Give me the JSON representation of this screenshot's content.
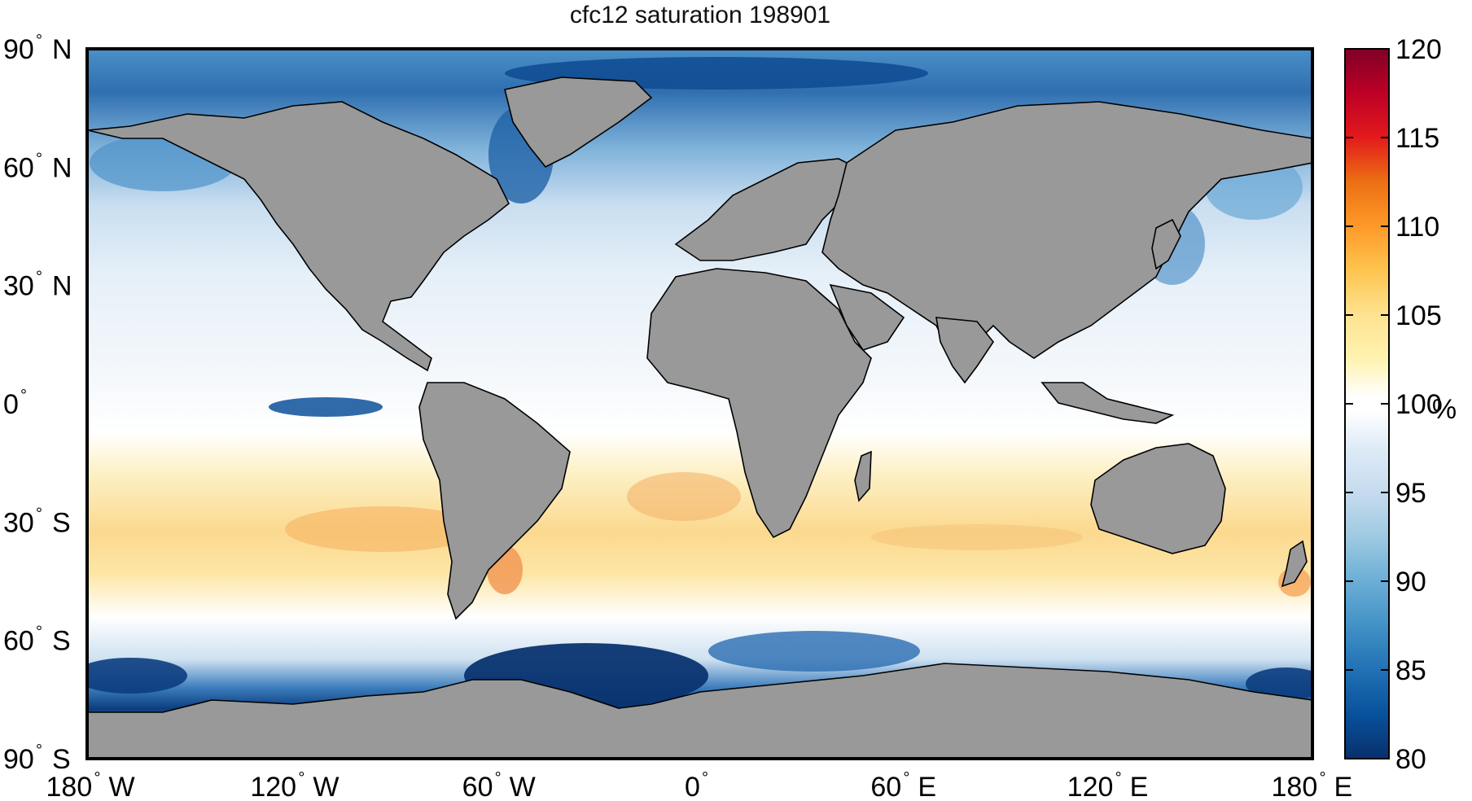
{
  "title": "cfc12 saturation 198901",
  "map": {
    "projection": "equirectangular",
    "lon_range": [
      -180,
      180
    ],
    "lat_range": [
      -90,
      90
    ],
    "land_color": "#999999",
    "coastline_color": "#000000"
  },
  "axes": {
    "y_ticks": [
      {
        "num": "90",
        "hem": "N"
      },
      {
        "num": "60",
        "hem": "N"
      },
      {
        "num": "30",
        "hem": "N"
      },
      {
        "num": "0",
        "hem": ""
      },
      {
        "num": "30",
        "hem": "S"
      },
      {
        "num": "60",
        "hem": "S"
      },
      {
        "num": "90",
        "hem": "S"
      }
    ],
    "x_ticks": [
      {
        "num": "180",
        "hem": "W"
      },
      {
        "num": "120",
        "hem": "W"
      },
      {
        "num": "60",
        "hem": "W"
      },
      {
        "num": "0",
        "hem": ""
      },
      {
        "num": "60",
        "hem": "E"
      },
      {
        "num": "120",
        "hem": "E"
      },
      {
        "num": "180",
        "hem": "E"
      }
    ],
    "degree_symbol": "°"
  },
  "colorbar": {
    "unit": "%",
    "min": 80,
    "max": 120,
    "ticks": [
      "80",
      "85",
      "90",
      "95",
      "100",
      "105",
      "110",
      "115",
      "120"
    ],
    "colors": [
      "#08306b",
      "#08519c",
      "#2171b5",
      "#4292c6",
      "#6baed6",
      "#9ecae1",
      "#c6dbef",
      "#deebf7",
      "#ffffff",
      "#fff3b0",
      "#fee391",
      "#fec44f",
      "#fe9929",
      "#ec7014",
      "#e31a1c",
      "#bd0026",
      "#800026"
    ]
  },
  "chart_data": {
    "type": "heatmap",
    "title": "cfc12 saturation 198901",
    "xlabel": "",
    "ylabel": "",
    "xlim": [
      -180,
      180
    ],
    "ylim": [
      -90,
      90
    ],
    "colorbar_label": "%",
    "colorbar_range": [
      80,
      120
    ],
    "zonal_pattern": [
      {
        "lat_band": [
          65,
          90
        ],
        "approx_value": 92
      },
      {
        "lat_band": [
          30,
          65
        ],
        "approx_value": 96
      },
      {
        "lat_band": [
          0,
          30
        ],
        "approx_value": 98
      },
      {
        "lat_band": [
          -15,
          0
        ],
        "approx_value": 99
      },
      {
        "lat_band": [
          -45,
          -15
        ],
        "approx_value": 104
      },
      {
        "lat_band": [
          -60,
          -45
        ],
        "approx_value": 99
      },
      {
        "lat_band": [
          -78,
          -60
        ],
        "approx_value": 88
      }
    ]
  }
}
